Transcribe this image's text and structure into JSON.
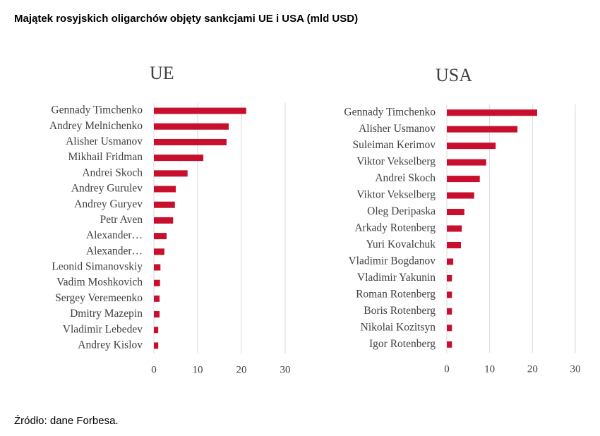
{
  "title": "Majątek rosyjskich oligarchów objęty sankcjami UE i USA (mld USD)",
  "source": "Źródło: dane Forbesa.",
  "chart_data": [
    {
      "type": "bar",
      "orientation": "horizontal",
      "title": "UE",
      "categories": [
        "Gennady Timchenko",
        "Andrey Melnichenko",
        "Alisher Usmanov",
        "Mikhail  Fridman",
        "Andrei Skoch",
        "Andrey Gurulev",
        "Andrey Guryev",
        "Petr Aven",
        "Alexander…",
        "Alexander…",
        "Leonid Simanovskiy",
        "Vadim Moshkovich",
        "Sergey Veremeenko",
        "Dmitry Mazepin",
        "Vladimir Lebedev",
        "Andrey Kislov"
      ],
      "values": [
        21.1,
        17.1,
        16.6,
        11.3,
        7.7,
        5.0,
        4.8,
        4.4,
        2.9,
        2.4,
        1.5,
        1.4,
        1.3,
        1.3,
        1.0,
        1.0
      ],
      "color": "#c8102e",
      "xlim": [
        0,
        30
      ],
      "xticks": [
        0,
        10,
        20,
        30
      ],
      "grid": true
    },
    {
      "type": "bar",
      "orientation": "horizontal",
      "title": "USA",
      "categories": [
        "Gennady Timchenko",
        "Alisher Usmanov",
        "Suleiman Kerimov",
        "Viktor Vekselberg",
        "Andrei Skoch",
        "Viktor Vekselberg",
        "Oleg Deripaska",
        "Arkady Rotenberg",
        "Yuri Kovalchuk",
        "Vladimir Bogdanov",
        "Vladimir Yakunin",
        "Roman Rotenberg",
        "Boris Rotenberg",
        "Nikolai Kozitsyn",
        "Igor Rotenberg"
      ],
      "values": [
        21.1,
        16.5,
        11.4,
        9.2,
        7.7,
        6.4,
        4.1,
        3.5,
        3.3,
        1.5,
        1.2,
        1.2,
        1.2,
        1.2,
        1.2
      ],
      "color": "#c8102e",
      "xlim": [
        0,
        30
      ],
      "xticks": [
        0,
        10,
        20,
        30
      ],
      "grid": true
    }
  ]
}
